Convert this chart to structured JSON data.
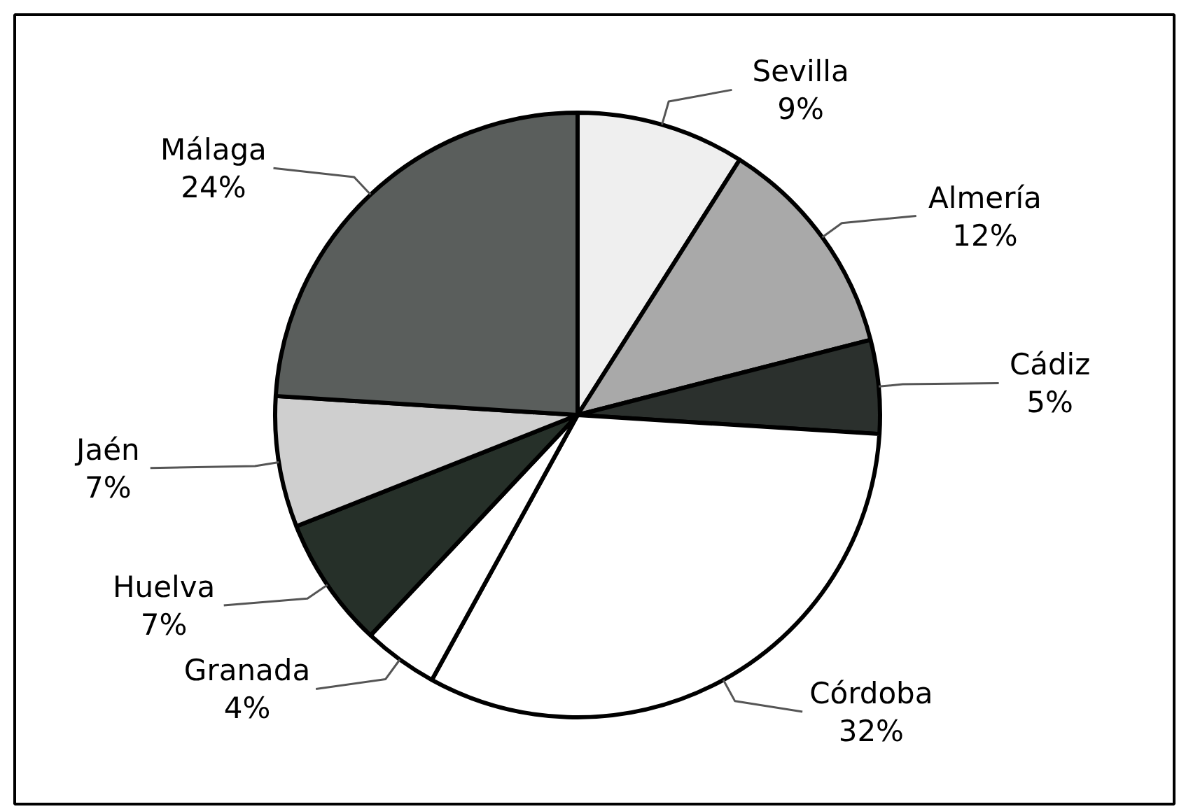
{
  "chart_data": {
    "type": "pie",
    "categories": [
      "Sevilla",
      "Almería",
      "Cádiz",
      "Córdoba",
      "Granada",
      "Huelva",
      "Jaén",
      "Málaga"
    ],
    "values": [
      9,
      12,
      5,
      32,
      4,
      7,
      7,
      24
    ],
    "value_labels": [
      "9%",
      "12%",
      "5%",
      "32%",
      "4%",
      "7%",
      "7%",
      "24%"
    ],
    "colors": [
      "#efefef",
      "#a9a9a9",
      "#2b302d",
      "#ffffff",
      "#ffffff",
      "#263029",
      "#cfcfcf",
      "#5a5e5c"
    ]
  }
}
